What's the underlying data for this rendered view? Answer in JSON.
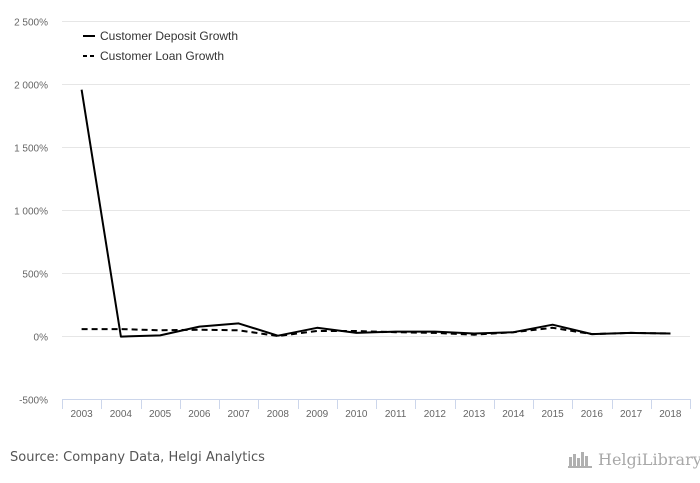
{
  "colors": {
    "line": "#000000",
    "grid": "#e6e6e6",
    "axis": "#ccd6eb",
    "text": "#666666"
  },
  "chart_data": {
    "type": "line",
    "x": [
      "2003",
      "2004",
      "2005",
      "2006",
      "2007",
      "2008",
      "2009",
      "2010",
      "2011",
      "2012",
      "2013",
      "2014",
      "2015",
      "2016",
      "2017",
      "2018"
    ],
    "series": [
      {
        "name": "Customer Deposit Growth",
        "dash": "solid",
        "values": [
          1955,
          -5,
          5,
          75,
          100,
          2,
          65,
          25,
          35,
          35,
          20,
          30,
          90,
          15,
          25,
          20
        ]
      },
      {
        "name": "Customer Loan Growth",
        "dash": "dashed",
        "values": [
          55,
          55,
          45,
          50,
          45,
          0,
          40,
          40,
          30,
          25,
          10,
          30,
          65,
          15,
          25,
          20
        ]
      }
    ],
    "ylim": [
      -500,
      2500
    ],
    "yticks": [
      -500,
      0,
      500,
      1000,
      1500,
      2000,
      2500
    ],
    "ytick_labels": [
      "-500%",
      "0%",
      "500%",
      "1 000%",
      "1 500%",
      "2 000%",
      "2 500%"
    ],
    "xlabel": "",
    "ylabel": "",
    "grid": true,
    "legend_position": "top-left"
  },
  "footer": {
    "source": "Source: Company Data, Helgi Analytics",
    "brand_part1": "Helgi",
    "brand_part2": "Library."
  }
}
